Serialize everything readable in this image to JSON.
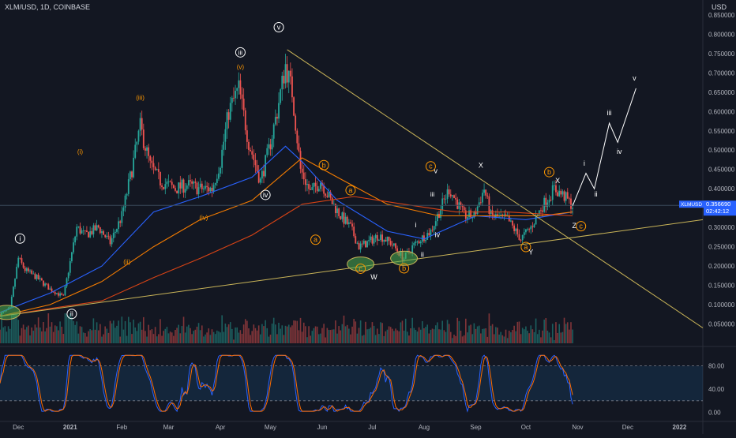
{
  "header": {
    "symbol_line": "XLM/USD, 1D, COINBASE",
    "unit": "USD"
  },
  "price_tag": {
    "symbol": "XLMUSD",
    "price": "0.356690",
    "countdown": "02:42:12"
  },
  "chart_data": {
    "type": "candlestick",
    "title": "XLM/USD, 1D, COINBASE",
    "ylabel": "USD",
    "price_axis": {
      "ylim": [
        0.0,
        0.86
      ],
      "ticks": [
        "0.050000",
        "0.100000",
        "0.150000",
        "0.200000",
        "0.250000",
        "0.300000",
        "0.350000",
        "0.400000",
        "0.450000",
        "0.500000",
        "0.550000",
        "0.600000",
        "0.650000",
        "0.700000",
        "0.750000",
        "0.800000",
        "0.850000"
      ]
    },
    "time_axis": {
      "labels": [
        "Dec",
        "2021",
        "Feb",
        "Mar",
        "Apr",
        "May",
        "Jun",
        "Jul",
        "Aug",
        "Sep",
        "Oct",
        "Nov",
        "Dec",
        "2022"
      ]
    },
    "price_path": [
      [
        "2020-11-20",
        0.075
      ],
      [
        "2020-11-26",
        0.09
      ],
      [
        "2020-12-01",
        0.22
      ],
      [
        "2020-12-05",
        0.19
      ],
      [
        "2020-12-12",
        0.17
      ],
      [
        "2020-12-20",
        0.14
      ],
      [
        "2020-12-28",
        0.12
      ],
      [
        "2021-01-05",
        0.3
      ],
      [
        "2021-01-10",
        0.28
      ],
      [
        "2021-01-18",
        0.3
      ],
      [
        "2021-01-25",
        0.26
      ],
      [
        "2021-02-01",
        0.33
      ],
      [
        "2021-02-07",
        0.45
      ],
      [
        "2021-02-12",
        0.56
      ],
      [
        "2021-02-18",
        0.46
      ],
      [
        "2021-02-24",
        0.42
      ],
      [
        "2021-03-05",
        0.4
      ],
      [
        "2021-03-12",
        0.41
      ],
      [
        "2021-03-20",
        0.4
      ],
      [
        "2021-03-27",
        0.4
      ],
      [
        "2021-04-01",
        0.47
      ],
      [
        "2021-04-06",
        0.6
      ],
      [
        "2021-04-12",
        0.66
      ],
      [
        "2021-04-18",
        0.52
      ],
      [
        "2021-04-25",
        0.42
      ],
      [
        "2021-04-30",
        0.5
      ],
      [
        "2021-05-05",
        0.6
      ],
      [
        "2021-05-10",
        0.72
      ],
      [
        "2021-05-14",
        0.65
      ],
      [
        "2021-05-19",
        0.45
      ],
      [
        "2021-05-25",
        0.39
      ],
      [
        "2021-05-31",
        0.42
      ],
      [
        "2021-06-06",
        0.37
      ],
      [
        "2021-06-12",
        0.33
      ],
      [
        "2021-06-18",
        0.3
      ],
      [
        "2021-06-23",
        0.25
      ],
      [
        "2021-06-28",
        0.26
      ],
      [
        "2021-07-05",
        0.28
      ],
      [
        "2021-07-12",
        0.26
      ],
      [
        "2021-07-20",
        0.22
      ],
      [
        "2021-07-25",
        0.25
      ],
      [
        "2021-07-30",
        0.27
      ],
      [
        "2021-08-05",
        0.29
      ],
      [
        "2021-08-10",
        0.34
      ],
      [
        "2021-08-16",
        0.4
      ],
      [
        "2021-08-20",
        0.37
      ],
      [
        "2021-08-25",
        0.33
      ],
      [
        "2021-08-31",
        0.33
      ],
      [
        "2021-09-06",
        0.4
      ],
      [
        "2021-09-10",
        0.33
      ],
      [
        "2021-09-20",
        0.32
      ],
      [
        "2021-09-28",
        0.27
      ],
      [
        "2021-10-04",
        0.3
      ],
      [
        "2021-10-10",
        0.35
      ],
      [
        "2021-10-18",
        0.4
      ],
      [
        "2021-10-24",
        0.38
      ],
      [
        "2021-10-29",
        0.356
      ]
    ],
    "projection_path": [
      [
        "2021-10-29",
        0.356
      ],
      [
        "2021-11-06",
        0.44
      ],
      [
        "2021-11-11",
        0.4
      ],
      [
        "2021-11-20",
        0.57
      ],
      [
        "2021-11-25",
        0.52
      ],
      [
        "2021-12-06",
        0.66
      ]
    ],
    "projection_labels": [
      {
        "date": "2021-11-05",
        "price": 0.46,
        "text": "i"
      },
      {
        "date": "2021-11-12",
        "price": 0.38,
        "text": "ii"
      },
      {
        "date": "2021-11-20",
        "price": 0.59,
        "text": "iii"
      },
      {
        "date": "2021-11-26",
        "price": 0.49,
        "text": "iv"
      },
      {
        "date": "2021-12-05",
        "price": 0.68,
        "text": "v"
      }
    ],
    "moving_averages": [
      {
        "color": "#2962ff",
        "values": [
          [
            "2020-11-20",
            0.08
          ],
          [
            "2020-12-20",
            0.13
          ],
          [
            "2021-01-20",
            0.2
          ],
          [
            "2021-02-20",
            0.34
          ],
          [
            "2021-03-20",
            0.38
          ],
          [
            "2021-04-20",
            0.43
          ],
          [
            "2021-05-10",
            0.51
          ],
          [
            "2021-05-20",
            0.47
          ],
          [
            "2021-06-10",
            0.37
          ],
          [
            "2021-07-10",
            0.29
          ],
          [
            "2021-08-01",
            0.27
          ],
          [
            "2021-09-01",
            0.33
          ],
          [
            "2021-10-01",
            0.32
          ],
          [
            "2021-10-29",
            0.34
          ]
        ]
      },
      {
        "color": "#f57c00",
        "values": [
          [
            "2020-11-20",
            0.07
          ],
          [
            "2020-12-20",
            0.1
          ],
          [
            "2021-01-20",
            0.16
          ],
          [
            "2021-02-20",
            0.25
          ],
          [
            "2021-03-20",
            0.32
          ],
          [
            "2021-04-20",
            0.37
          ],
          [
            "2021-05-20",
            0.48
          ],
          [
            "2021-06-10",
            0.43
          ],
          [
            "2021-07-10",
            0.36
          ],
          [
            "2021-08-10",
            0.33
          ],
          [
            "2021-09-10",
            0.33
          ],
          [
            "2021-10-10",
            0.33
          ],
          [
            "2021-10-29",
            0.34
          ]
        ]
      },
      {
        "color": "#d84315",
        "values": [
          [
            "2020-11-20",
            0.07
          ],
          [
            "2020-12-20",
            0.09
          ],
          [
            "2021-01-20",
            0.11
          ],
          [
            "2021-02-20",
            0.17
          ],
          [
            "2021-03-20",
            0.22
          ],
          [
            "2021-04-20",
            0.28
          ],
          [
            "2021-05-20",
            0.36
          ],
          [
            "2021-06-20",
            0.38
          ],
          [
            "2021-07-20",
            0.36
          ],
          [
            "2021-08-20",
            0.34
          ],
          [
            "2021-09-20",
            0.34
          ],
          [
            "2021-10-29",
            0.33
          ]
        ]
      }
    ],
    "trendlines": [
      {
        "name": "descending",
        "color": "#c9b458",
        "from": [
          "2021-05-11",
          0.76
        ],
        "to": [
          "2022-01-15",
          0.04
        ]
      },
      {
        "name": "ascending",
        "color": "#c9b458",
        "from": [
          "2020-11-20",
          0.07
        ],
        "to": [
          "2022-01-15",
          0.32
        ]
      },
      {
        "name": "horizontal",
        "color": "#3a4a5a",
        "from": [
          "2020-11-20",
          0.357
        ],
        "to": [
          "2022-01-15",
          0.357
        ]
      }
    ],
    "wave_labels": [
      {
        "date": "2020-12-02",
        "price": 0.265,
        "text": "i",
        "color": "white",
        "circled": true
      },
      {
        "date": "2021-01-02",
        "price": 0.07,
        "text": "ii",
        "color": "white",
        "circled": true
      },
      {
        "date": "2021-01-07",
        "price": 0.49,
        "text": "(i)",
        "color": "orange",
        "circled": false
      },
      {
        "date": "2021-02-04",
        "price": 0.205,
        "text": "(ii)",
        "color": "orange",
        "circled": false
      },
      {
        "date": "2021-02-12",
        "price": 0.63,
        "text": "(iii)",
        "color": "orange",
        "circled": false
      },
      {
        "date": "2021-03-22",
        "price": 0.32,
        "text": "(iv)",
        "color": "orange",
        "circled": false
      },
      {
        "date": "2021-04-13",
        "price": 0.71,
        "text": "(v)",
        "color": "orange",
        "circled": false
      },
      {
        "date": "2021-04-13",
        "price": 0.747,
        "text": "iii",
        "color": "white",
        "circled": true
      },
      {
        "date": "2021-04-28",
        "price": 0.378,
        "text": "iv",
        "color": "white",
        "circled": true
      },
      {
        "date": "2021-05-06",
        "price": 0.812,
        "text": "v",
        "color": "white",
        "circled": true
      },
      {
        "date": "2021-05-28",
        "price": 0.262,
        "text": "a",
        "color": "orange",
        "circled": true
      },
      {
        "date": "2021-06-02",
        "price": 0.455,
        "text": "b",
        "color": "orange",
        "circled": true
      },
      {
        "date": "2021-06-18",
        "price": 0.39,
        "text": "a",
        "color": "orange",
        "circled": true
      },
      {
        "date": "2021-06-24",
        "price": 0.187,
        "text": "c",
        "color": "orange",
        "circled": true
      },
      {
        "date": "2021-07-02",
        "price": 0.165,
        "text": "W",
        "color": "white",
        "circled": false
      },
      {
        "date": "2021-07-20",
        "price": 0.188,
        "text": "b",
        "color": "orange",
        "circled": true
      },
      {
        "date": "2021-07-27",
        "price": 0.3,
        "text": "i",
        "color": "white",
        "circled": false
      },
      {
        "date": "2021-07-31",
        "price": 0.224,
        "text": "ii",
        "color": "white",
        "circled": false
      },
      {
        "date": "2021-08-05",
        "price": 0.452,
        "text": "c",
        "color": "orange",
        "circled": true
      },
      {
        "date": "2021-08-08",
        "price": 0.44,
        "text": "v",
        "color": "white",
        "circled": false
      },
      {
        "date": "2021-08-06",
        "price": 0.38,
        "text": "iii",
        "color": "white",
        "circled": false
      },
      {
        "date": "2021-08-09",
        "price": 0.275,
        "text": "iv",
        "color": "white",
        "circled": false
      },
      {
        "date": "2021-09-04",
        "price": 0.455,
        "text": "X",
        "color": "white",
        "circled": false
      },
      {
        "date": "2021-10-01",
        "price": 0.243,
        "text": "a",
        "color": "orange",
        "circled": true
      },
      {
        "date": "2021-10-04",
        "price": 0.23,
        "text": "Y",
        "color": "white",
        "circled": false
      },
      {
        "date": "2021-10-15",
        "price": 0.437,
        "text": "b",
        "color": "orange",
        "circled": true
      },
      {
        "date": "2021-10-20",
        "price": 0.415,
        "text": "X",
        "color": "white",
        "circled": false
      },
      {
        "date": "2021-10-30",
        "price": 0.298,
        "text": "Z",
        "color": "white",
        "circled": false
      },
      {
        "date": "2021-11-03",
        "price": 0.297,
        "text": "c",
        "color": "orange",
        "circled": true
      }
    ],
    "highlights": [
      {
        "date": "2020-11-24",
        "price": 0.08
      },
      {
        "date": "2021-06-24",
        "price": 0.205
      },
      {
        "date": "2021-07-20",
        "price": 0.22
      }
    ],
    "oscillator": {
      "ylim": [
        -10,
        105
      ],
      "ticks": [
        "0.00",
        "40.00",
        "80.00"
      ],
      "bands": [
        20,
        80
      ]
    }
  }
}
